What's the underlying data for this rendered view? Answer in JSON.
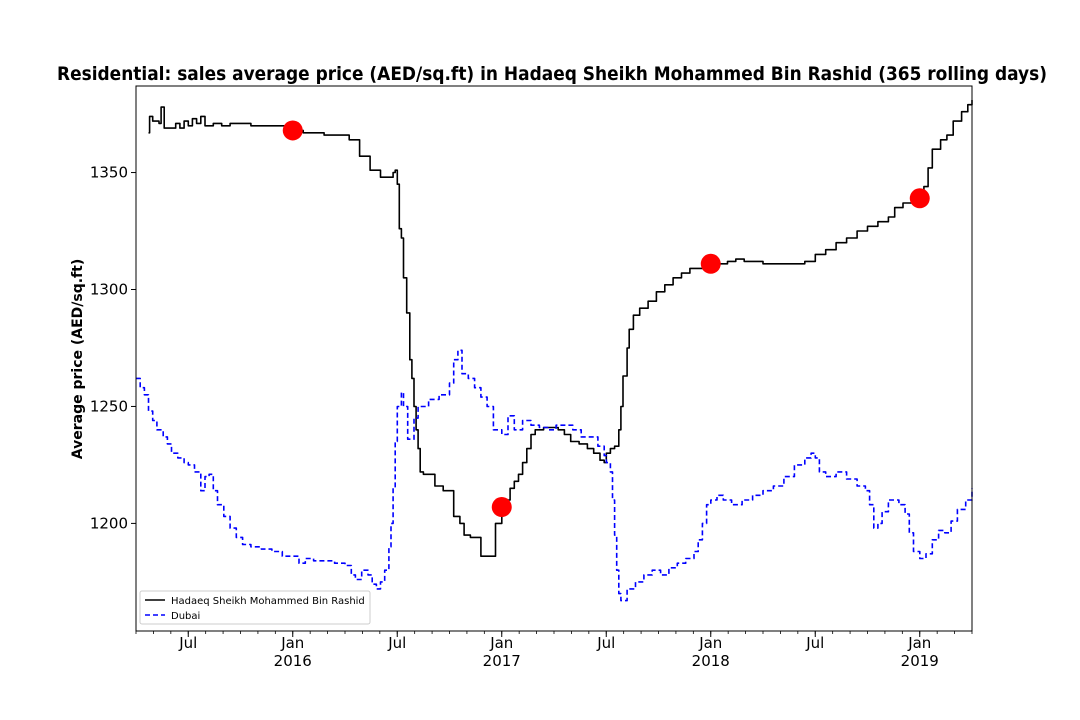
{
  "chart_data": {
    "type": "line",
    "title": "Residential: sales average price (AED/sq.ft) in Hadaeq Sheikh Mohammed Bin Rashid (365 rolling days)",
    "xlabel": "",
    "ylabel": "Average price (AED/sq.ft)",
    "xlim": [
      2015.25,
      2019.25
    ],
    "ylim": [
      1154,
      1387
    ],
    "y_ticks": [
      1200,
      1250,
      1300,
      1350
    ],
    "x_ticks": [
      {
        "x": 2015.5,
        "line1": "Jul",
        "line2": ""
      },
      {
        "x": 2016.0,
        "line1": "Jan",
        "line2": "2016"
      },
      {
        "x": 2016.5,
        "line1": "Jul",
        "line2": ""
      },
      {
        "x": 2017.0,
        "line1": "Jan",
        "line2": "2017"
      },
      {
        "x": 2017.5,
        "line1": "Jul",
        "line2": ""
      },
      {
        "x": 2018.0,
        "line1": "Jan",
        "line2": "2018"
      },
      {
        "x": 2018.5,
        "line1": "Jul",
        "line2": ""
      },
      {
        "x": 2019.0,
        "line1": "Jan",
        "line2": "2019"
      }
    ],
    "series": [
      {
        "name": "Hadaeq Sheikh Mohammed Bin Rashid",
        "color": "#000000",
        "style": "solid",
        "points": [
          [
            2015.31,
            1367
          ],
          [
            2015.315,
            1374
          ],
          [
            2015.33,
            1372
          ],
          [
            2015.36,
            1371
          ],
          [
            2015.37,
            1378
          ],
          [
            2015.38,
            1378
          ],
          [
            2015.385,
            1369
          ],
          [
            2015.42,
            1369
          ],
          [
            2015.44,
            1371
          ],
          [
            2015.46,
            1369
          ],
          [
            2015.48,
            1372
          ],
          [
            2015.5,
            1370
          ],
          [
            2015.52,
            1373
          ],
          [
            2015.54,
            1371
          ],
          [
            2015.56,
            1374
          ],
          [
            2015.58,
            1370
          ],
          [
            2015.62,
            1371
          ],
          [
            2015.66,
            1370
          ],
          [
            2015.7,
            1371
          ],
          [
            2015.8,
            1370
          ],
          [
            2015.9,
            1370
          ],
          [
            2016.0,
            1368
          ],
          [
            2016.05,
            1367
          ],
          [
            2016.1,
            1367
          ],
          [
            2016.15,
            1366
          ],
          [
            2016.2,
            1366
          ],
          [
            2016.25,
            1366
          ],
          [
            2016.27,
            1364
          ],
          [
            2016.3,
            1364
          ],
          [
            2016.32,
            1357
          ],
          [
            2016.35,
            1357
          ],
          [
            2016.37,
            1351
          ],
          [
            2016.4,
            1351
          ],
          [
            2016.42,
            1348
          ],
          [
            2016.45,
            1348
          ],
          [
            2016.48,
            1350
          ],
          [
            2016.49,
            1351
          ],
          [
            2016.5,
            1345
          ],
          [
            2016.51,
            1326
          ],
          [
            2016.52,
            1322
          ],
          [
            2016.53,
            1305
          ],
          [
            2016.545,
            1290
          ],
          [
            2016.56,
            1270
          ],
          [
            2016.57,
            1262
          ],
          [
            2016.58,
            1250
          ],
          [
            2016.59,
            1240
          ],
          [
            2016.6,
            1232
          ],
          [
            2016.61,
            1222
          ],
          [
            2016.625,
            1221
          ],
          [
            2016.65,
            1221
          ],
          [
            2016.68,
            1216
          ],
          [
            2016.7,
            1216
          ],
          [
            2016.72,
            1214
          ],
          [
            2016.75,
            1214
          ],
          [
            2016.77,
            1203
          ],
          [
            2016.8,
            1200
          ],
          [
            2016.82,
            1195
          ],
          [
            2016.85,
            1194
          ],
          [
            2016.88,
            1194
          ],
          [
            2016.9,
            1186
          ],
          [
            2016.93,
            1186
          ],
          [
            2016.96,
            1186
          ],
          [
            2016.97,
            1200
          ],
          [
            2017.0,
            1205
          ],
          [
            2017.02,
            1210
          ],
          [
            2017.04,
            1215
          ],
          [
            2017.06,
            1218
          ],
          [
            2017.08,
            1221
          ],
          [
            2017.1,
            1226
          ],
          [
            2017.12,
            1232
          ],
          [
            2017.14,
            1238
          ],
          [
            2017.16,
            1240
          ],
          [
            2017.2,
            1241
          ],
          [
            2017.24,
            1241
          ],
          [
            2017.27,
            1240
          ],
          [
            2017.3,
            1238
          ],
          [
            2017.33,
            1235
          ],
          [
            2017.37,
            1234
          ],
          [
            2017.41,
            1232
          ],
          [
            2017.44,
            1230
          ],
          [
            2017.47,
            1227
          ],
          [
            2017.49,
            1226
          ],
          [
            2017.5,
            1230
          ],
          [
            2017.52,
            1232
          ],
          [
            2017.54,
            1233
          ],
          [
            2017.56,
            1240
          ],
          [
            2017.57,
            1250
          ],
          [
            2017.58,
            1263
          ],
          [
            2017.6,
            1275
          ],
          [
            2017.61,
            1283
          ],
          [
            2017.63,
            1289
          ],
          [
            2017.66,
            1292
          ],
          [
            2017.7,
            1295
          ],
          [
            2017.74,
            1299
          ],
          [
            2017.78,
            1302
          ],
          [
            2017.82,
            1305
          ],
          [
            2017.86,
            1307
          ],
          [
            2017.9,
            1309
          ],
          [
            2017.95,
            1309
          ],
          [
            2018.0,
            1310
          ],
          [
            2018.04,
            1311
          ],
          [
            2018.08,
            1312
          ],
          [
            2018.12,
            1313
          ],
          [
            2018.16,
            1312
          ],
          [
            2018.2,
            1312
          ],
          [
            2018.25,
            1311
          ],
          [
            2018.3,
            1311
          ],
          [
            2018.35,
            1311
          ],
          [
            2018.4,
            1311
          ],
          [
            2018.45,
            1312
          ],
          [
            2018.5,
            1315
          ],
          [
            2018.55,
            1317
          ],
          [
            2018.6,
            1320
          ],
          [
            2018.65,
            1322
          ],
          [
            2018.7,
            1325
          ],
          [
            2018.75,
            1327
          ],
          [
            2018.8,
            1329
          ],
          [
            2018.85,
            1331
          ],
          [
            2018.88,
            1335
          ],
          [
            2018.92,
            1337
          ],
          [
            2018.96,
            1338
          ],
          [
            2019.0,
            1339
          ],
          [
            2019.02,
            1344
          ],
          [
            2019.04,
            1352
          ],
          [
            2019.06,
            1360
          ],
          [
            2019.1,
            1364
          ],
          [
            2019.13,
            1366
          ],
          [
            2019.16,
            1372
          ],
          [
            2019.2,
            1376
          ],
          [
            2019.23,
            1379
          ],
          [
            2019.25,
            1381
          ]
        ]
      },
      {
        "name": "Dubai",
        "color": "#0000ff",
        "style": "dashed",
        "points": [
          [
            2015.25,
            1262
          ],
          [
            2015.27,
            1258
          ],
          [
            2015.29,
            1255
          ],
          [
            2015.31,
            1248
          ],
          [
            2015.33,
            1244
          ],
          [
            2015.35,
            1240
          ],
          [
            2015.38,
            1237
          ],
          [
            2015.4,
            1234
          ],
          [
            2015.42,
            1230
          ],
          [
            2015.45,
            1228
          ],
          [
            2015.48,
            1226
          ],
          [
            2015.5,
            1225
          ],
          [
            2015.53,
            1222
          ],
          [
            2015.56,
            1214
          ],
          [
            2015.58,
            1220
          ],
          [
            2015.6,
            1221
          ],
          [
            2015.62,
            1214
          ],
          [
            2015.64,
            1208
          ],
          [
            2015.67,
            1203
          ],
          [
            2015.7,
            1198
          ],
          [
            2015.73,
            1194
          ],
          [
            2015.76,
            1191
          ],
          [
            2015.8,
            1190
          ],
          [
            2015.85,
            1189
          ],
          [
            2015.9,
            1188
          ],
          [
            2015.95,
            1186
          ],
          [
            2016.0,
            1186
          ],
          [
            2016.03,
            1183
          ],
          [
            2016.06,
            1185
          ],
          [
            2016.1,
            1184
          ],
          [
            2016.15,
            1184
          ],
          [
            2016.2,
            1183
          ],
          [
            2016.25,
            1182
          ],
          [
            2016.28,
            1178
          ],
          [
            2016.3,
            1176
          ],
          [
            2016.33,
            1180
          ],
          [
            2016.36,
            1178
          ],
          [
            2016.38,
            1174
          ],
          [
            2016.4,
            1172
          ],
          [
            2016.42,
            1175
          ],
          [
            2016.44,
            1180
          ],
          [
            2016.46,
            1190
          ],
          [
            2016.47,
            1200
          ],
          [
            2016.48,
            1215
          ],
          [
            2016.49,
            1235
          ],
          [
            2016.5,
            1250
          ],
          [
            2016.52,
            1256
          ],
          [
            2016.53,
            1250
          ],
          [
            2016.55,
            1236
          ],
          [
            2016.58,
            1245
          ],
          [
            2016.6,
            1250
          ],
          [
            2016.65,
            1253
          ],
          [
            2016.7,
            1255
          ],
          [
            2016.75,
            1260
          ],
          [
            2016.77,
            1270
          ],
          [
            2016.79,
            1274
          ],
          [
            2016.81,
            1264
          ],
          [
            2016.84,
            1262
          ],
          [
            2016.87,
            1258
          ],
          [
            2016.9,
            1254
          ],
          [
            2016.93,
            1250
          ],
          [
            2016.96,
            1240
          ],
          [
            2017.0,
            1238
          ],
          [
            2017.03,
            1246
          ],
          [
            2017.06,
            1240
          ],
          [
            2017.1,
            1244
          ],
          [
            2017.14,
            1242
          ],
          [
            2017.18,
            1241
          ],
          [
            2017.22,
            1240
          ],
          [
            2017.26,
            1242
          ],
          [
            2017.3,
            1242
          ],
          [
            2017.34,
            1240
          ],
          [
            2017.38,
            1237
          ],
          [
            2017.42,
            1237
          ],
          [
            2017.46,
            1233
          ],
          [
            2017.49,
            1229
          ],
          [
            2017.5,
            1226
          ],
          [
            2017.52,
            1222
          ],
          [
            2017.53,
            1210
          ],
          [
            2017.54,
            1195
          ],
          [
            2017.55,
            1180
          ],
          [
            2017.56,
            1170
          ],
          [
            2017.57,
            1167
          ],
          [
            2017.6,
            1172
          ],
          [
            2017.64,
            1175
          ],
          [
            2017.68,
            1178
          ],
          [
            2017.72,
            1180
          ],
          [
            2017.76,
            1178
          ],
          [
            2017.8,
            1181
          ],
          [
            2017.84,
            1183
          ],
          [
            2017.88,
            1185
          ],
          [
            2017.92,
            1188
          ],
          [
            2017.94,
            1193
          ],
          [
            2017.96,
            1200
          ],
          [
            2017.98,
            1208
          ],
          [
            2018.0,
            1210
          ],
          [
            2018.03,
            1212
          ],
          [
            2018.06,
            1210
          ],
          [
            2018.1,
            1208
          ],
          [
            2018.15,
            1210
          ],
          [
            2018.2,
            1212
          ],
          [
            2018.25,
            1214
          ],
          [
            2018.3,
            1216
          ],
          [
            2018.35,
            1220
          ],
          [
            2018.4,
            1225
          ],
          [
            2018.45,
            1228
          ],
          [
            2018.48,
            1230
          ],
          [
            2018.5,
            1228
          ],
          [
            2018.52,
            1222
          ],
          [
            2018.55,
            1220
          ],
          [
            2018.6,
            1222
          ],
          [
            2018.65,
            1219
          ],
          [
            2018.7,
            1216
          ],
          [
            2018.74,
            1214
          ],
          [
            2018.76,
            1208
          ],
          [
            2018.78,
            1198
          ],
          [
            2018.8,
            1200
          ],
          [
            2018.82,
            1205
          ],
          [
            2018.85,
            1210
          ],
          [
            2018.9,
            1208
          ],
          [
            2018.93,
            1204
          ],
          [
            2018.95,
            1196
          ],
          [
            2018.97,
            1188
          ],
          [
            2019.0,
            1185
          ],
          [
            2019.03,
            1187
          ],
          [
            2019.06,
            1193
          ],
          [
            2019.09,
            1197
          ],
          [
            2019.12,
            1196
          ],
          [
            2019.15,
            1201
          ],
          [
            2019.18,
            1206
          ],
          [
            2019.22,
            1210
          ],
          [
            2019.25,
            1215
          ]
        ]
      }
    ],
    "markers": [
      {
        "x": 2016.0,
        "y": 1368
      },
      {
        "x": 2017.0,
        "y": 1207
      },
      {
        "x": 2018.0,
        "y": 1311
      },
      {
        "x": 2019.0,
        "y": 1339
      }
    ],
    "marker_color": "#ff0000",
    "legend": {
      "position": "lower-left",
      "entries": [
        "Hadaeq Sheikh Mohammed Bin Rashid",
        "Dubai"
      ]
    }
  }
}
